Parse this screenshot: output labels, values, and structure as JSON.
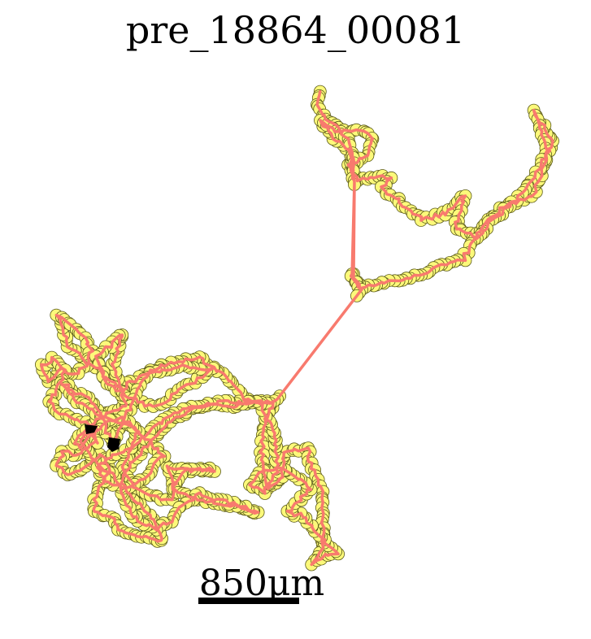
{
  "figure": {
    "title": "pre_18864_00081",
    "scale_bar_label": "850μm",
    "colors": {
      "path": "#f87a6e",
      "marker_fill": "#fcf97a",
      "marker_edge": "#5a5a1a",
      "start_marker": "#000000",
      "scale_bar": "#000000"
    }
  }
}
